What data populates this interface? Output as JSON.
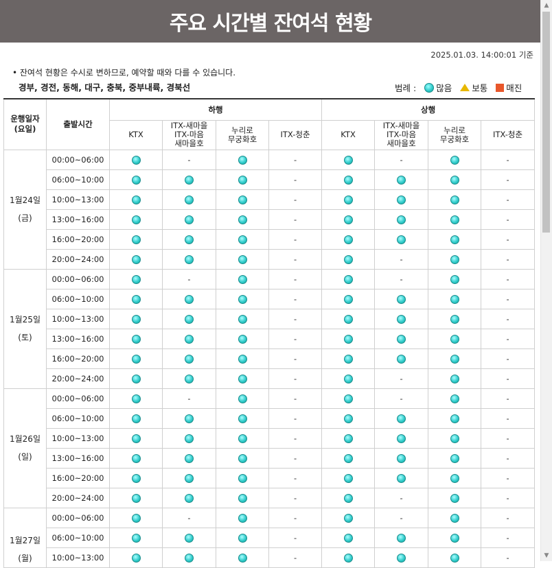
{
  "title": "주요 시간별 잔여석 현황",
  "timestamp": "2025.01.03. 14:00:01 기준",
  "notice": "• 잔여석 현황은 수시로 변하므로, 예약할 때와 다를 수 있습니다.",
  "lines": "경부, 경전, 동해, 대구, 충북, 중부내륙, 경북선",
  "legend": {
    "label": "범례 :",
    "many": "많음",
    "normal": "보통",
    "soldout": "매진",
    "colors": {
      "many": "#33cccc",
      "normal": "#e8b800",
      "soldout": "#e8572b"
    }
  },
  "headers": {
    "date": "운행일자\n(요일)",
    "time": "출발시간",
    "down": "하행",
    "up": "상행",
    "trains": [
      "KTX",
      "ITX-새마을\nITX-마음\n새마을호",
      "누리로\n무궁화호",
      "ITX-청춘"
    ]
  },
  "days": [
    {
      "date": "1월24일",
      "weekday": "(금)",
      "rows": [
        {
          "time": "00:00~06:00",
          "cells": [
            "o",
            "-",
            "o",
            "-",
            "o",
            "-",
            "o",
            "-"
          ]
        },
        {
          "time": "06:00~10:00",
          "cells": [
            "o",
            "o",
            "o",
            "-",
            "o",
            "o",
            "o",
            "-"
          ]
        },
        {
          "time": "10:00~13:00",
          "cells": [
            "o",
            "o",
            "o",
            "-",
            "o",
            "o",
            "o",
            "-"
          ]
        },
        {
          "time": "13:00~16:00",
          "cells": [
            "o",
            "o",
            "o",
            "-",
            "o",
            "o",
            "o",
            "-"
          ]
        },
        {
          "time": "16:00~20:00",
          "cells": [
            "o",
            "o",
            "o",
            "-",
            "o",
            "o",
            "o",
            "-"
          ]
        },
        {
          "time": "20:00~24:00",
          "cells": [
            "o",
            "o",
            "o",
            "-",
            "o",
            "-",
            "o",
            "-"
          ]
        }
      ]
    },
    {
      "date": "1월25일",
      "weekday": "(토)",
      "rows": [
        {
          "time": "00:00~06:00",
          "cells": [
            "o",
            "-",
            "o",
            "-",
            "o",
            "-",
            "o",
            "-"
          ]
        },
        {
          "time": "06:00~10:00",
          "cells": [
            "o",
            "o",
            "o",
            "-",
            "o",
            "o",
            "o",
            "-"
          ]
        },
        {
          "time": "10:00~13:00",
          "cells": [
            "o",
            "o",
            "o",
            "-",
            "o",
            "o",
            "o",
            "-"
          ]
        },
        {
          "time": "13:00~16:00",
          "cells": [
            "o",
            "o",
            "o",
            "-",
            "o",
            "o",
            "o",
            "-"
          ]
        },
        {
          "time": "16:00~20:00",
          "cells": [
            "o",
            "o",
            "o",
            "-",
            "o",
            "o",
            "o",
            "-"
          ]
        },
        {
          "time": "20:00~24:00",
          "cells": [
            "o",
            "o",
            "o",
            "-",
            "o",
            "-",
            "o",
            "-"
          ]
        }
      ]
    },
    {
      "date": "1월26일",
      "weekday": "(일)",
      "rows": [
        {
          "time": "00:00~06:00",
          "cells": [
            "o",
            "-",
            "o",
            "-",
            "o",
            "-",
            "o",
            "-"
          ]
        },
        {
          "time": "06:00~10:00",
          "cells": [
            "o",
            "o",
            "o",
            "-",
            "o",
            "o",
            "o",
            "-"
          ]
        },
        {
          "time": "10:00~13:00",
          "cells": [
            "o",
            "o",
            "o",
            "-",
            "o",
            "o",
            "o",
            "-"
          ]
        },
        {
          "time": "13:00~16:00",
          "cells": [
            "o",
            "o",
            "o",
            "-",
            "o",
            "o",
            "o",
            "-"
          ]
        },
        {
          "time": "16:00~20:00",
          "cells": [
            "o",
            "o",
            "o",
            "-",
            "o",
            "o",
            "o",
            "-"
          ]
        },
        {
          "time": "20:00~24:00",
          "cells": [
            "o",
            "o",
            "o",
            "-",
            "o",
            "-",
            "o",
            "-"
          ]
        }
      ]
    },
    {
      "date": "1월27일",
      "weekday": "(월)",
      "rows": [
        {
          "time": "00:00~06:00",
          "cells": [
            "o",
            "-",
            "o",
            "-",
            "o",
            "-",
            "o",
            "-"
          ]
        },
        {
          "time": "06:00~10:00",
          "cells": [
            "o",
            "o",
            "o",
            "-",
            "o",
            "o",
            "o",
            "-"
          ]
        },
        {
          "time": "10:00~13:00",
          "cells": [
            "o",
            "o",
            "o",
            "-",
            "o",
            "o",
            "o",
            "-"
          ]
        }
      ]
    }
  ]
}
